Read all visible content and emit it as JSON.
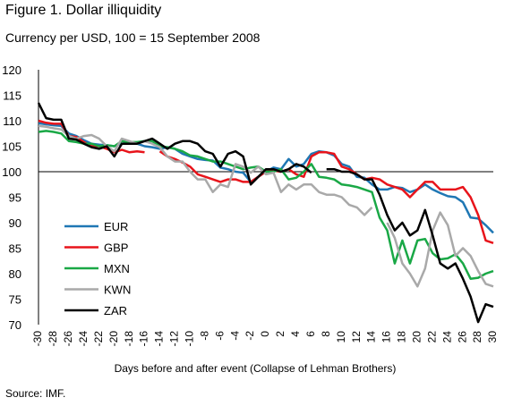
{
  "header": {
    "title": "Figure 1. Dollar illiquidity",
    "subtitle": "Currency per USD, 100 = 15 September 2008"
  },
  "footer": {
    "source": "Source: IMF."
  },
  "chart_data": {
    "type": "line",
    "xlabel": "Days before and after event (Collapse of Lehman Brothers)",
    "ylabel": "",
    "xlim": [
      -30,
      30
    ],
    "ylim": [
      70,
      120
    ],
    "y_ticks": [
      70,
      75,
      80,
      85,
      90,
      95,
      100,
      105,
      110,
      115,
      120
    ],
    "x_ticks": [
      -30,
      -28,
      -26,
      -24,
      -22,
      -20,
      -18,
      -16,
      -14,
      -12,
      -10,
      -8,
      -6,
      -4,
      -2,
      0,
      2,
      4,
      6,
      8,
      10,
      12,
      14,
      16,
      18,
      20,
      22,
      24,
      26,
      28,
      30
    ],
    "reference_line": 100,
    "grid": false,
    "legend_position": "left",
    "series": [
      {
        "name": "EUR",
        "color": "#1f77b4",
        "points": [
          [
            -30,
            109.5
          ],
          [
            -29,
            109.3
          ],
          [
            -28,
            109.1
          ],
          [
            -27,
            109.0
          ],
          [
            -26,
            107.5
          ],
          [
            -25,
            107.0
          ],
          [
            -24,
            106.2
          ],
          [
            -23,
            105.5
          ],
          [
            -22,
            105.3
          ],
          [
            -21,
            105.2
          ],
          [
            -20,
            105.0
          ],
          [
            -19,
            105.5
          ],
          [
            -18,
            105.8
          ],
          [
            -17,
            105.5
          ],
          [
            -16,
            105.0
          ],
          [
            -15,
            104.8
          ],
          [
            -14,
            104.5
          ],
          [
            -13,
            104.8
          ],
          [
            -12,
            104.5
          ],
          [
            -11,
            103.5
          ],
          [
            -10,
            103.0
          ],
          [
            -9,
            102.5
          ],
          [
            -8,
            102.3
          ],
          [
            -7,
            102.2
          ],
          [
            -6,
            100.8
          ],
          [
            -5,
            100.5
          ],
          [
            -4,
            100.0
          ],
          [
            -3,
            99.8
          ],
          [
            -2,
            98.0
          ],
          [
            -1,
            99.0
          ],
          [
            0,
            100.0
          ],
          [
            1,
            100.8
          ],
          [
            2,
            100.5
          ],
          [
            3,
            102.5
          ],
          [
            4,
            101.0
          ],
          [
            5,
            101.5
          ],
          [
            6,
            103.5
          ],
          [
            7,
            104.0
          ],
          [
            8,
            103.8
          ],
          [
            9,
            103.2
          ],
          [
            10,
            101.5
          ],
          [
            11,
            101.0
          ],
          [
            12,
            99.0
          ],
          [
            13,
            98.8
          ],
          [
            14,
            97.5
          ],
          [
            15,
            96.5
          ],
          [
            16,
            96.5
          ],
          [
            17,
            97.0
          ],
          [
            18,
            96.8
          ],
          [
            19,
            96.0
          ],
          [
            20,
            96.5
          ],
          [
            21,
            97.5
          ],
          [
            22,
            96.5
          ],
          [
            23,
            95.8
          ],
          [
            24,
            95.2
          ],
          [
            25,
            95.0
          ],
          [
            26,
            94.0
          ],
          [
            27,
            91.0
          ],
          [
            28,
            90.8
          ],
          [
            29,
            89.5
          ],
          [
            30,
            88.0
          ]
        ]
      },
      {
        "name": "GBP",
        "color": "#e8141b",
        "points": [
          [
            -30,
            110.0
          ],
          [
            -29,
            109.6
          ],
          [
            -28,
            109.4
          ],
          [
            -27,
            109.4
          ],
          [
            -26,
            107.0
          ],
          [
            -25,
            106.8
          ],
          [
            -24,
            105.8
          ],
          [
            -23,
            105.0
          ],
          [
            -22,
            105.0
          ],
          [
            -21,
            104.5
          ],
          [
            -20,
            103.8
          ],
          [
            -19,
            104.3
          ],
          [
            -18,
            103.8
          ],
          [
            -17,
            104.0
          ],
          [
            -16,
            103.8
          ],
          [
            -14,
            104.0
          ],
          [
            -13,
            103.0
          ],
          [
            -12,
            102.5
          ],
          [
            -11,
            101.8
          ],
          [
            -10,
            101.0
          ],
          [
            -9,
            99.5
          ],
          [
            -8,
            99.0
          ],
          [
            -7,
            98.5
          ],
          [
            -6,
            98.0
          ],
          [
            -5,
            98.5
          ],
          [
            -4,
            98.5
          ],
          [
            -3,
            98.0
          ],
          [
            -2,
            98.0
          ],
          [
            -1,
            99.0
          ],
          [
            0,
            100.0
          ],
          [
            1,
            100.2
          ],
          [
            2,
            100.0
          ],
          [
            3,
            100.5
          ],
          [
            4,
            99.5
          ],
          [
            5,
            99.0
          ],
          [
            6,
            103.0
          ],
          [
            7,
            103.8
          ],
          [
            8,
            103.8
          ],
          [
            9,
            103.5
          ],
          [
            10,
            101.0
          ],
          [
            11,
            100.5
          ],
          [
            12,
            99.5
          ],
          [
            13,
            98.5
          ],
          [
            14,
            98.8
          ],
          [
            15,
            98.5
          ],
          [
            16,
            97.5
          ],
          [
            17,
            97.0
          ],
          [
            18,
            96.5
          ],
          [
            19,
            95.0
          ],
          [
            20,
            96.5
          ],
          [
            21,
            98.0
          ],
          [
            22,
            98.0
          ],
          [
            23,
            96.5
          ],
          [
            24,
            96.5
          ],
          [
            25,
            96.5
          ],
          [
            26,
            97.0
          ],
          [
            27,
            95.0
          ],
          [
            28,
            91.5
          ],
          [
            29,
            86.5
          ],
          [
            30,
            86.0
          ]
        ]
      },
      {
        "name": "MXN",
        "color": "#1aa846",
        "points": [
          [
            -30,
            107.8
          ],
          [
            -29,
            108.0
          ],
          [
            -28,
            107.8
          ],
          [
            -27,
            107.5
          ],
          [
            -26,
            106.0
          ],
          [
            -25,
            105.8
          ],
          [
            -24,
            105.5
          ],
          [
            -23,
            105.5
          ],
          [
            -22,
            105.0
          ],
          [
            -21,
            105.2
          ],
          [
            -20,
            105.0
          ],
          [
            -19,
            106.0
          ],
          [
            -18,
            105.8
          ],
          [
            -17,
            105.8
          ],
          [
            -16,
            106.0
          ],
          [
            -15,
            106.0
          ],
          [
            -14,
            105.0
          ],
          [
            -13,
            104.8
          ],
          [
            -12,
            104.5
          ],
          [
            -11,
            104.0
          ],
          [
            -10,
            103.2
          ],
          [
            -9,
            103.0
          ],
          [
            -8,
            102.5
          ],
          [
            -7,
            102.0
          ],
          [
            -6,
            102.0
          ],
          [
            -5,
            101.5
          ],
          [
            -4,
            101.0
          ],
          [
            -3,
            100.5
          ],
          [
            -2,
            100.8
          ],
          [
            -1,
            101.0
          ],
          [
            0,
            100.0
          ],
          [
            1,
            100.0
          ],
          [
            2,
            100.5
          ],
          [
            3,
            98.5
          ],
          [
            4,
            98.8
          ],
          [
            5,
            100.0
          ],
          [
            6,
            101.5
          ],
          [
            7,
            99.0
          ],
          [
            8,
            98.8
          ],
          [
            9,
            98.5
          ],
          [
            10,
            97.5
          ],
          [
            11,
            97.3
          ],
          [
            12,
            97.0
          ],
          [
            13,
            96.5
          ],
          [
            14,
            96.0
          ],
          [
            15,
            91.0
          ],
          [
            16,
            88.5
          ],
          [
            17,
            82.0
          ],
          [
            18,
            86.5
          ],
          [
            19,
            82.0
          ],
          [
            20,
            86.5
          ],
          [
            21,
            86.8
          ],
          [
            22,
            84.0
          ],
          [
            23,
            82.8
          ],
          [
            24,
            83.0
          ],
          [
            25,
            83.8
          ],
          [
            26,
            82.0
          ],
          [
            27,
            79.0
          ],
          [
            28,
            79.2
          ],
          [
            29,
            80.0
          ],
          [
            30,
            80.5
          ]
        ]
      },
      {
        "name": "KWN",
        "color": "#a9a9a9",
        "points": [
          [
            -30,
            109.0
          ],
          [
            -29,
            108.8
          ],
          [
            -28,
            108.5
          ],
          [
            -27,
            108.3
          ],
          [
            -26,
            107.0
          ],
          [
            -25,
            106.5
          ],
          [
            -24,
            107.0
          ],
          [
            -23,
            107.2
          ],
          [
            -22,
            106.5
          ],
          [
            -21,
            105.0
          ],
          [
            -20,
            104.0
          ],
          [
            -19,
            106.5
          ],
          [
            -18,
            106.0
          ],
          [
            -17,
            105.5
          ],
          [
            -16,
            106.0
          ],
          [
            -15,
            105.5
          ],
          [
            -14,
            104.8
          ],
          [
            -13,
            103.0
          ],
          [
            -12,
            102.0
          ],
          [
            -11,
            102.0
          ],
          [
            -10,
            100.0
          ],
          [
            -9,
            98.5
          ],
          [
            -8,
            98.5
          ],
          [
            -7,
            96.0
          ],
          [
            -6,
            97.5
          ],
          [
            -5,
            97.0
          ],
          [
            -4,
            101.5
          ],
          [
            -3,
            101.0
          ],
          [
            -2,
            99.8
          ],
          [
            -1,
            101.0
          ],
          [
            0,
            99.5
          ],
          [
            1,
            99.8
          ],
          [
            2,
            96.0
          ],
          [
            3,
            97.5
          ],
          [
            4,
            96.5
          ],
          [
            5,
            97.5
          ],
          [
            6,
            97.5
          ],
          [
            7,
            96.0
          ],
          [
            8,
            95.5
          ],
          [
            9,
            95.5
          ],
          [
            10,
            95.0
          ],
          [
            11,
            93.5
          ],
          [
            12,
            93.0
          ],
          [
            13,
            91.5
          ],
          [
            14,
            93.0
          ],
          [
            16,
            90.0
          ],
          [
            17,
            87.0
          ],
          [
            18,
            82.0
          ],
          [
            19,
            80.0
          ],
          [
            20,
            77.5
          ],
          [
            21,
            81.0
          ],
          [
            22,
            88.5
          ],
          [
            23,
            92.0
          ],
          [
            24,
            89.5
          ],
          [
            25,
            83.5
          ],
          [
            26,
            85.0
          ],
          [
            27,
            83.5
          ],
          [
            28,
            80.5
          ],
          [
            29,
            78.0
          ],
          [
            30,
            77.5
          ]
        ]
      },
      {
        "name": "ZAR",
        "color": "#000000",
        "points": [
          [
            -30,
            113.5
          ],
          [
            -29,
            110.5
          ],
          [
            -28,
            110.2
          ],
          [
            -27,
            110.2
          ],
          [
            -26,
            106.5
          ],
          [
            -25,
            106.3
          ],
          [
            -24,
            105.5
          ],
          [
            -23,
            104.8
          ],
          [
            -22,
            104.5
          ],
          [
            -21,
            105.0
          ],
          [
            -20,
            103.0
          ],
          [
            -19,
            105.5
          ],
          [
            -18,
            105.5
          ],
          [
            -17,
            105.5
          ],
          [
            -16,
            106.0
          ],
          [
            -15,
            106.5
          ],
          [
            -14,
            105.5
          ],
          [
            -13,
            104.5
          ],
          [
            -12,
            105.5
          ],
          [
            -11,
            106.0
          ],
          [
            -10,
            106.0
          ],
          [
            -9,
            105.5
          ],
          [
            -8,
            104.0
          ],
          [
            -7,
            103.5
          ],
          [
            -6,
            101.0
          ],
          [
            -5,
            103.5
          ],
          [
            -4,
            104.0
          ],
          [
            -3,
            103.0
          ],
          [
            -2,
            97.5
          ],
          [
            -1,
            99.0
          ],
          [
            0,
            100.5
          ],
          [
            1,
            100.5
          ],
          [
            2,
            100.0
          ],
          [
            3,
            100.5
          ],
          [
            4,
            101.5
          ],
          [
            5,
            101.0
          ],
          [
            6,
            99.8
          ],
          [
            8,
            100.5
          ],
          [
            9,
            100.5
          ],
          [
            10,
            100.0
          ],
          [
            11,
            100.0
          ],
          [
            12,
            99.5
          ],
          [
            13,
            98.5
          ],
          [
            14,
            98.5
          ],
          [
            15,
            95.5
          ],
          [
            16,
            91.5
          ],
          [
            17,
            88.5
          ],
          [
            18,
            90.0
          ],
          [
            19,
            87.5
          ],
          [
            20,
            88.5
          ],
          [
            21,
            92.5
          ],
          [
            22,
            87.5
          ],
          [
            23,
            82.0
          ],
          [
            24,
            81.0
          ],
          [
            25,
            82.0
          ],
          [
            26,
            79.0
          ],
          [
            27,
            75.5
          ],
          [
            28,
            70.5
          ],
          [
            29,
            74.0
          ],
          [
            30,
            73.5
          ]
        ]
      }
    ]
  }
}
